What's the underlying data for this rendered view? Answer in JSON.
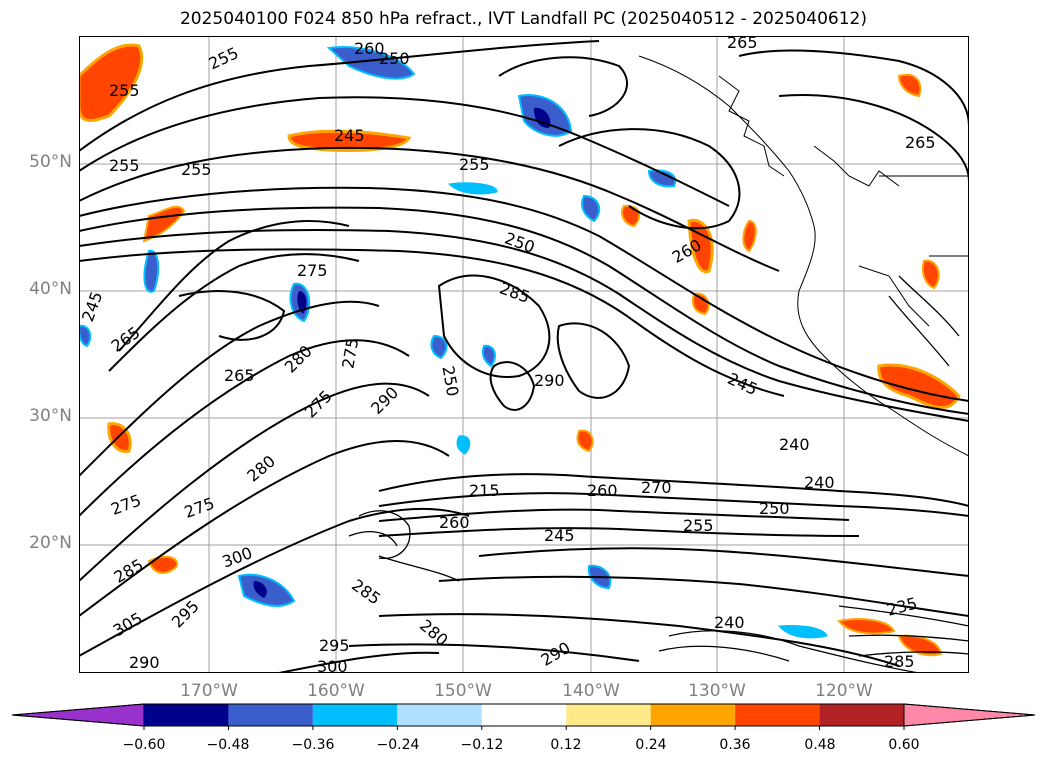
{
  "title": "2025040100 F024 850 hPa refract., IVT Landfall PC (2025040512 - 2025040612)",
  "latitude_ticks": [
    "50°N",
    "40°N",
    "30°N",
    "20°N"
  ],
  "longitude_ticks": [
    "170°W",
    "160°W",
    "150°W",
    "140°W",
    "130°W",
    "120°W"
  ],
  "contour_labels": [
    "260",
    "250",
    "255",
    "255",
    "265",
    "245",
    "255",
    "255",
    "255",
    "250",
    "260",
    "265",
    "275",
    "285",
    "245",
    "265",
    "265",
    "280",
    "275",
    "290",
    "280",
    "275",
    "290",
    "250",
    "245",
    "240",
    "240",
    "250",
    "260",
    "270",
    "215",
    "255",
    "245",
    "260",
    "275",
    "275",
    "300",
    "285",
    "305",
    "295",
    "285",
    "280",
    "295",
    "300",
    "290",
    "240",
    "235",
    "285",
    "290"
  ],
  "colorbar": {
    "ticks": [
      "−0.60",
      "−0.48",
      "−0.36",
      "−0.24",
      "−0.12",
      "0.12",
      "0.24",
      "0.36",
      "0.48",
      "0.60"
    ],
    "colors": [
      "#9932cc",
      "#00008b",
      "#3a5fcd",
      "#00bfff",
      "#b0e0ff",
      "#ffffff",
      "#ffe98a",
      "#ffa500",
      "#ff4500",
      "#b22222",
      "#ff88a8"
    ]
  },
  "map_colors": {
    "ocean": "#ffffff",
    "contour": "#000000",
    "grid": "#a0a0a0",
    "coast": "#000000"
  }
}
